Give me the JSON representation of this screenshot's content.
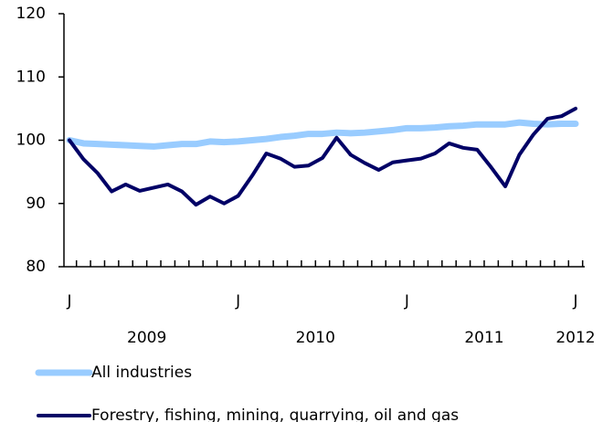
{
  "chart_data": {
    "type": "line",
    "categories": [
      "J",
      null,
      null,
      null,
      null,
      null,
      null,
      null,
      null,
      null,
      null,
      null,
      "J",
      null,
      null,
      null,
      null,
      null,
      null,
      null,
      null,
      null,
      null,
      null,
      "J",
      null,
      null,
      null,
      null,
      null,
      null,
      null,
      null,
      null,
      null,
      null,
      "J"
    ],
    "years": [
      "2009",
      "2010",
      "2011",
      "2012"
    ],
    "series": [
      {
        "name": "All industries",
        "color": "#99ccff",
        "values": [
          100,
          99.5,
          99.4,
          99.3,
          99.2,
          99.1,
          99.0,
          99.2,
          99.4,
          99.4,
          99.8,
          99.7,
          99.8,
          100.0,
          100.2,
          100.5,
          100.7,
          101.0,
          101.0,
          101.2,
          101.1,
          101.2,
          101.4,
          101.6,
          101.9,
          101.9,
          102.0,
          102.2,
          102.3,
          102.5,
          102.5,
          102.5,
          102.8,
          102.6,
          102.5,
          102.6,
          102.6
        ]
      },
      {
        "name": "Forestry, fishing, mining, quarrying, oil and gas",
        "color": "#000066",
        "values": [
          100,
          97.0,
          94.8,
          91.9,
          93.0,
          92.0,
          92.5,
          93.0,
          91.9,
          89.8,
          91.1,
          90.0,
          91.2,
          94.4,
          97.9,
          97.1,
          95.8,
          96.0,
          97.2,
          100.4,
          97.7,
          96.4,
          95.3,
          96.5,
          96.8,
          97.1,
          97.9,
          99.5,
          98.8,
          98.5,
          95.7,
          92.7,
          97.7,
          100.9,
          103.4,
          103.8,
          105.0
        ]
      }
    ],
    "ylim": [
      80,
      120
    ],
    "yticks": [
      80,
      90,
      100,
      110,
      120
    ],
    "grid": false
  }
}
